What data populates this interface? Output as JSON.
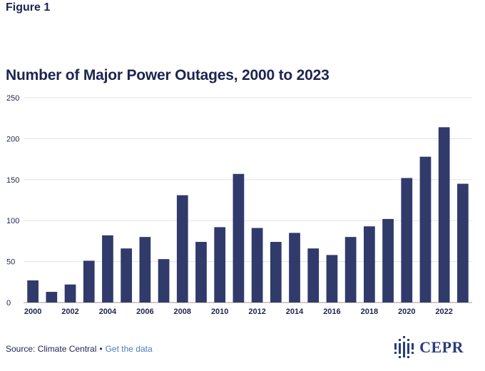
{
  "figure_label": "Figure 1",
  "footer": {
    "source": "Source: Climate Central",
    "separator": "•",
    "link": "Get the data"
  },
  "logo": {
    "text": "CEPR"
  },
  "colors": {
    "bar": "#303a6b",
    "grid": "#e3e3e3",
    "text": "#1d2451",
    "link": "#4a7fb5"
  },
  "chart_data": {
    "type": "bar",
    "title": "Number of Major Power Outages, 2000 to 2023",
    "xlabel": "",
    "ylabel": "",
    "ylim": [
      0,
      250
    ],
    "yticks": [
      0,
      50,
      100,
      150,
      200,
      250
    ],
    "xticks": [
      "2000",
      "2002",
      "2004",
      "2006",
      "2008",
      "2010",
      "2012",
      "2014",
      "2016",
      "2018",
      "2020",
      "2022"
    ],
    "grid": true,
    "categories": [
      "2000",
      "2001",
      "2002",
      "2003",
      "2004",
      "2005",
      "2006",
      "2007",
      "2008",
      "2009",
      "2010",
      "2011",
      "2012",
      "2013",
      "2014",
      "2015",
      "2016",
      "2017",
      "2018",
      "2019",
      "2020",
      "2021",
      "2022",
      "2023"
    ],
    "values": [
      27,
      13,
      22,
      51,
      82,
      66,
      80,
      53,
      131,
      74,
      92,
      157,
      91,
      74,
      85,
      66,
      58,
      80,
      93,
      102,
      152,
      178,
      214,
      145
    ]
  }
}
